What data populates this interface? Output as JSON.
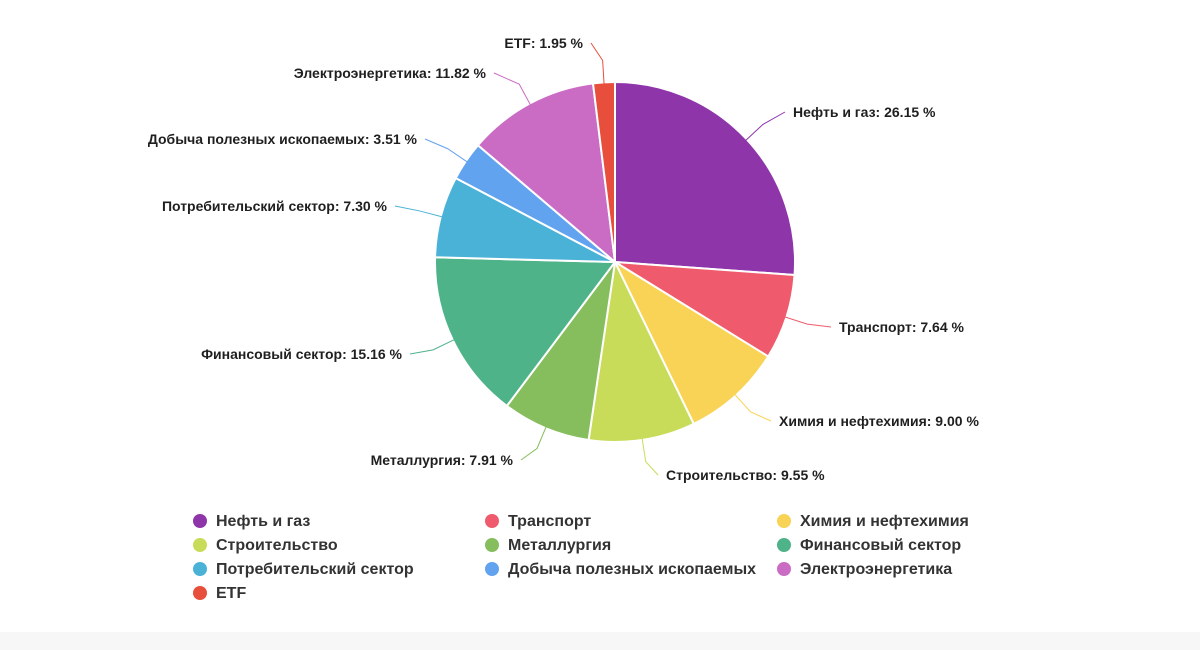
{
  "chart_data": {
    "type": "pie",
    "title": "",
    "unit": "%",
    "legend_position": "bottom",
    "slices": [
      {
        "name": "Нефть и газ",
        "value": 26.15,
        "label": "Нефть и газ: 26.15 %",
        "color": "#8e35aa"
      },
      {
        "name": "Транспорт",
        "value": 7.64,
        "label": "Транспорт: 7.64 %",
        "color": "#ef5b6c"
      },
      {
        "name": "Химия и нефтехимия",
        "value": 9.0,
        "label": "Химия и нефтехимия: 9.00 %",
        "color": "#f9d355"
      },
      {
        "name": "Строительство",
        "value": 9.55,
        "label": "Строительство: 9.55 %",
        "color": "#c8dc5a"
      },
      {
        "name": "Металлургия",
        "value": 7.91,
        "label": "Металлургия: 7.91 %",
        "color": "#86bd5d"
      },
      {
        "name": "Финансовый сектор",
        "value": 15.16,
        "label": "Финансовый сектор: 15.16 %",
        "color": "#4fb38a"
      },
      {
        "name": "Потребительский сектор",
        "value": 7.3,
        "label": "Потребительский сектор: 7.30 %",
        "color": "#4bb2d7"
      },
      {
        "name": "Добыча полезных ископаемых",
        "value": 3.51,
        "label": "Добыча полезных ископаемых: 3.51 %",
        "color": "#62a3ef"
      },
      {
        "name": "Электроэнергетика",
        "value": 11.82,
        "label": "Электроэнергетика: 11.82 %",
        "color": "#cb6cc4"
      },
      {
        "name": "ETF",
        "value": 1.95,
        "label": "ETF: 1.95 %",
        "color": "#e84e3c"
      }
    ]
  }
}
